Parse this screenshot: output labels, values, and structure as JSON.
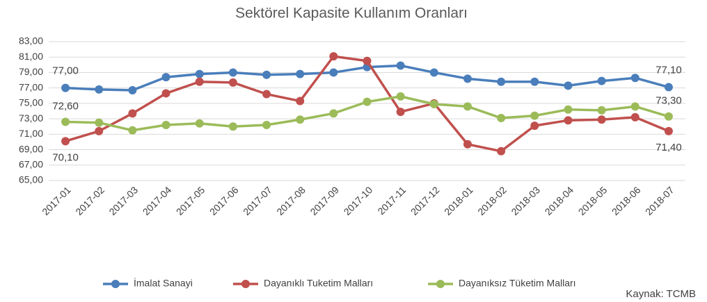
{
  "chart_data": {
    "type": "line",
    "title": "Sektörel Kapasite Kullanım Oranları",
    "categories": [
      "2017-01",
      "2017-02",
      "2017-03",
      "2017-04",
      "2017-05",
      "2017-06",
      "2017-07",
      "2017-08",
      "2017-09",
      "2017-10",
      "2017-11",
      "2017-12",
      "2018-01",
      "2018-02",
      "2018-03",
      "2018-04",
      "2018-05",
      "2018-06",
      "2018-07"
    ],
    "series": [
      {
        "name": "İmalat Sanayi",
        "color": "#4a7ebb",
        "values": [
          77.0,
          76.8,
          76.7,
          78.4,
          78.8,
          79.0,
          78.7,
          78.8,
          79.0,
          79.7,
          79.9,
          79.0,
          78.2,
          77.8,
          77.8,
          77.3,
          77.9,
          78.3,
          77.1
        ],
        "value_labels": [
          "77,00",
          null,
          null,
          null,
          null,
          null,
          null,
          null,
          null,
          null,
          null,
          null,
          null,
          null,
          null,
          null,
          null,
          null,
          "77,10"
        ]
      },
      {
        "name": "Dayanıklı Tuketim Malları",
        "color": "#c0504d",
        "values": [
          70.1,
          71.4,
          73.7,
          76.3,
          77.8,
          77.7,
          76.2,
          75.3,
          81.1,
          80.5,
          73.9,
          75.0,
          69.7,
          68.8,
          72.1,
          72.8,
          72.9,
          73.2,
          71.4
        ],
        "value_labels": [
          "70,10",
          null,
          null,
          null,
          null,
          null,
          null,
          null,
          null,
          null,
          null,
          null,
          null,
          null,
          null,
          null,
          null,
          null,
          "71,40"
        ]
      },
      {
        "name": "Dayanıksız Tüketim Malları",
        "color": "#9bbb59",
        "values": [
          72.6,
          72.5,
          71.5,
          72.2,
          72.4,
          72.0,
          72.2,
          72.9,
          73.7,
          75.2,
          75.9,
          74.9,
          74.6,
          73.1,
          73.4,
          74.2,
          74.1,
          74.6,
          73.3
        ],
        "value_labels": [
          "72,60",
          null,
          null,
          null,
          null,
          null,
          null,
          null,
          null,
          null,
          null,
          null,
          null,
          null,
          null,
          null,
          null,
          null,
          "73,30"
        ]
      }
    ],
    "ylim": [
      65,
      83
    ],
    "yticks": [
      {
        "value": 65,
        "label": "65,00"
      },
      {
        "value": 67,
        "label": "67,00"
      },
      {
        "value": 69,
        "label": "69,00"
      },
      {
        "value": 71,
        "label": "71,00"
      },
      {
        "value": 73,
        "label": "73,00"
      },
      {
        "value": 75,
        "label": "75,00"
      },
      {
        "value": 77,
        "label": "77,00"
      },
      {
        "value": 79,
        "label": "79,00"
      },
      {
        "value": 81,
        "label": "81,00"
      },
      {
        "value": 83,
        "label": "83,00"
      }
    ],
    "grid": true,
    "legend": "bottom",
    "annotations": [
      "Kaynak: TCMB"
    ]
  }
}
